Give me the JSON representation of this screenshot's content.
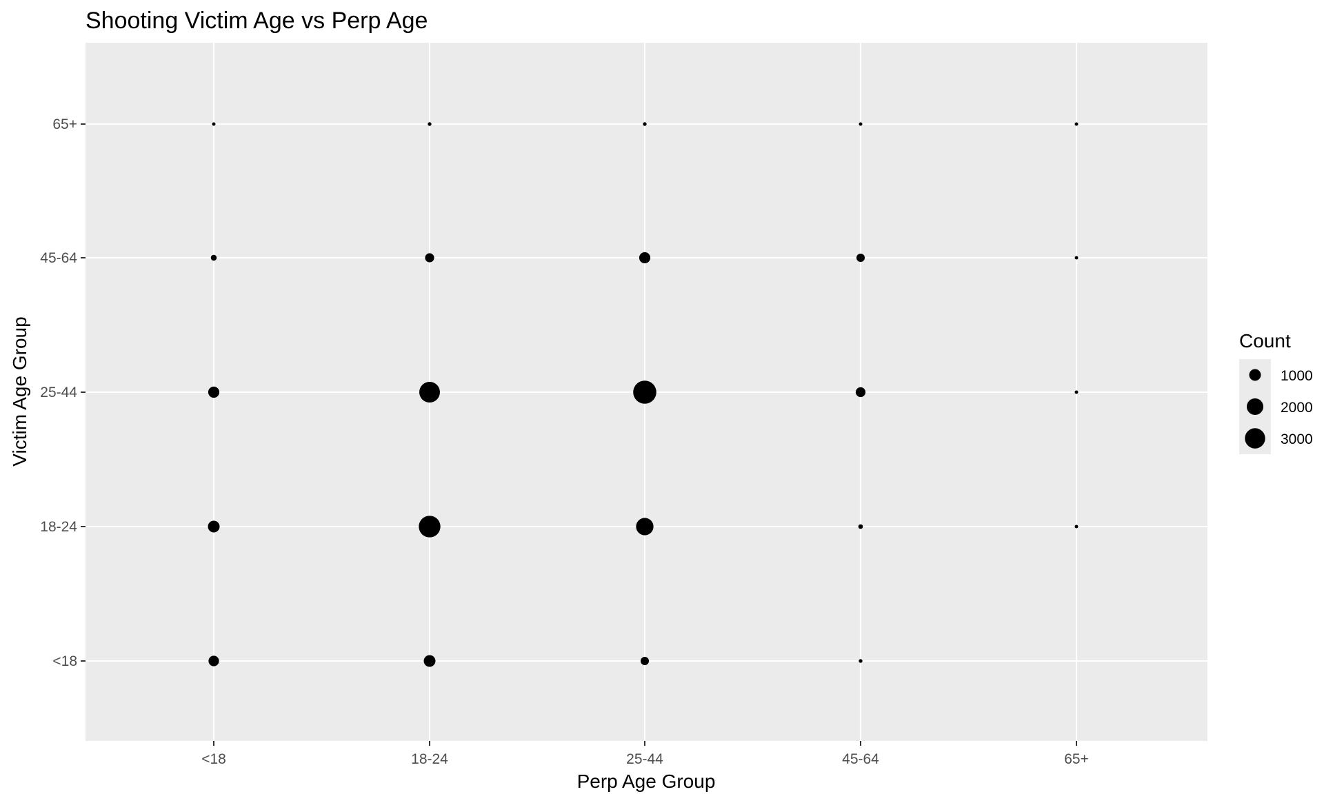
{
  "chart_data": {
    "type": "scatter",
    "title": "Shooting Victim Age vs Perp Age",
    "xlabel": "Perp Age Group",
    "ylabel": "Victim Age Group",
    "x_categories": [
      "<18",
      "18-24",
      "25-44",
      "45-64",
      "65+"
    ],
    "y_categories": [
      "<18",
      "18-24",
      "25-44",
      "45-64",
      "65+"
    ],
    "points": [
      {
        "x": "<18",
        "y": "<18",
        "count": 800
      },
      {
        "x": "18-24",
        "y": "<18",
        "count": 1000
      },
      {
        "x": "25-44",
        "y": "<18",
        "count": 500
      },
      {
        "x": "45-64",
        "y": "<18",
        "count": 100
      },
      {
        "x": "65+",
        "y": "<18",
        "count": 0
      },
      {
        "x": "<18",
        "y": "18-24",
        "count": 1000
      },
      {
        "x": "18-24",
        "y": "18-24",
        "count": 3400
      },
      {
        "x": "25-44",
        "y": "18-24",
        "count": 2200
      },
      {
        "x": "45-64",
        "y": "18-24",
        "count": 150
      },
      {
        "x": "65+",
        "y": "18-24",
        "count": 20
      },
      {
        "x": "<18",
        "y": "25-44",
        "count": 900
      },
      {
        "x": "18-24",
        "y": "25-44",
        "count": 3100
      },
      {
        "x": "25-44",
        "y": "25-44",
        "count": 3900
      },
      {
        "x": "45-64",
        "y": "25-44",
        "count": 700
      },
      {
        "x": "65+",
        "y": "25-44",
        "count": 60
      },
      {
        "x": "<18",
        "y": "45-64",
        "count": 250
      },
      {
        "x": "18-24",
        "y": "45-64",
        "count": 600
      },
      {
        "x": "25-44",
        "y": "45-64",
        "count": 900
      },
      {
        "x": "45-64",
        "y": "45-64",
        "count": 500
      },
      {
        "x": "65+",
        "y": "45-64",
        "count": 60
      },
      {
        "x": "<18",
        "y": "65+",
        "count": 50
      },
      {
        "x": "18-24",
        "y": "65+",
        "count": 100
      },
      {
        "x": "25-44",
        "y": "65+",
        "count": 100
      },
      {
        "x": "45-64",
        "y": "65+",
        "count": 50
      },
      {
        "x": "65+",
        "y": "65+",
        "count": 50
      }
    ],
    "legend": {
      "title": "Count",
      "placement": "right",
      "entries": [
        {
          "label": "1000",
          "count": 1000
        },
        {
          "label": "2000",
          "count": 2000
        },
        {
          "label": "3000",
          "count": 3000
        }
      ]
    },
    "grid": true,
    "colors": {
      "panel_background": "#ebebeb",
      "grid_line": "#ffffff",
      "point": "#000000",
      "tick_text": "#4d4d4d",
      "tick_mark": "#333333"
    }
  }
}
